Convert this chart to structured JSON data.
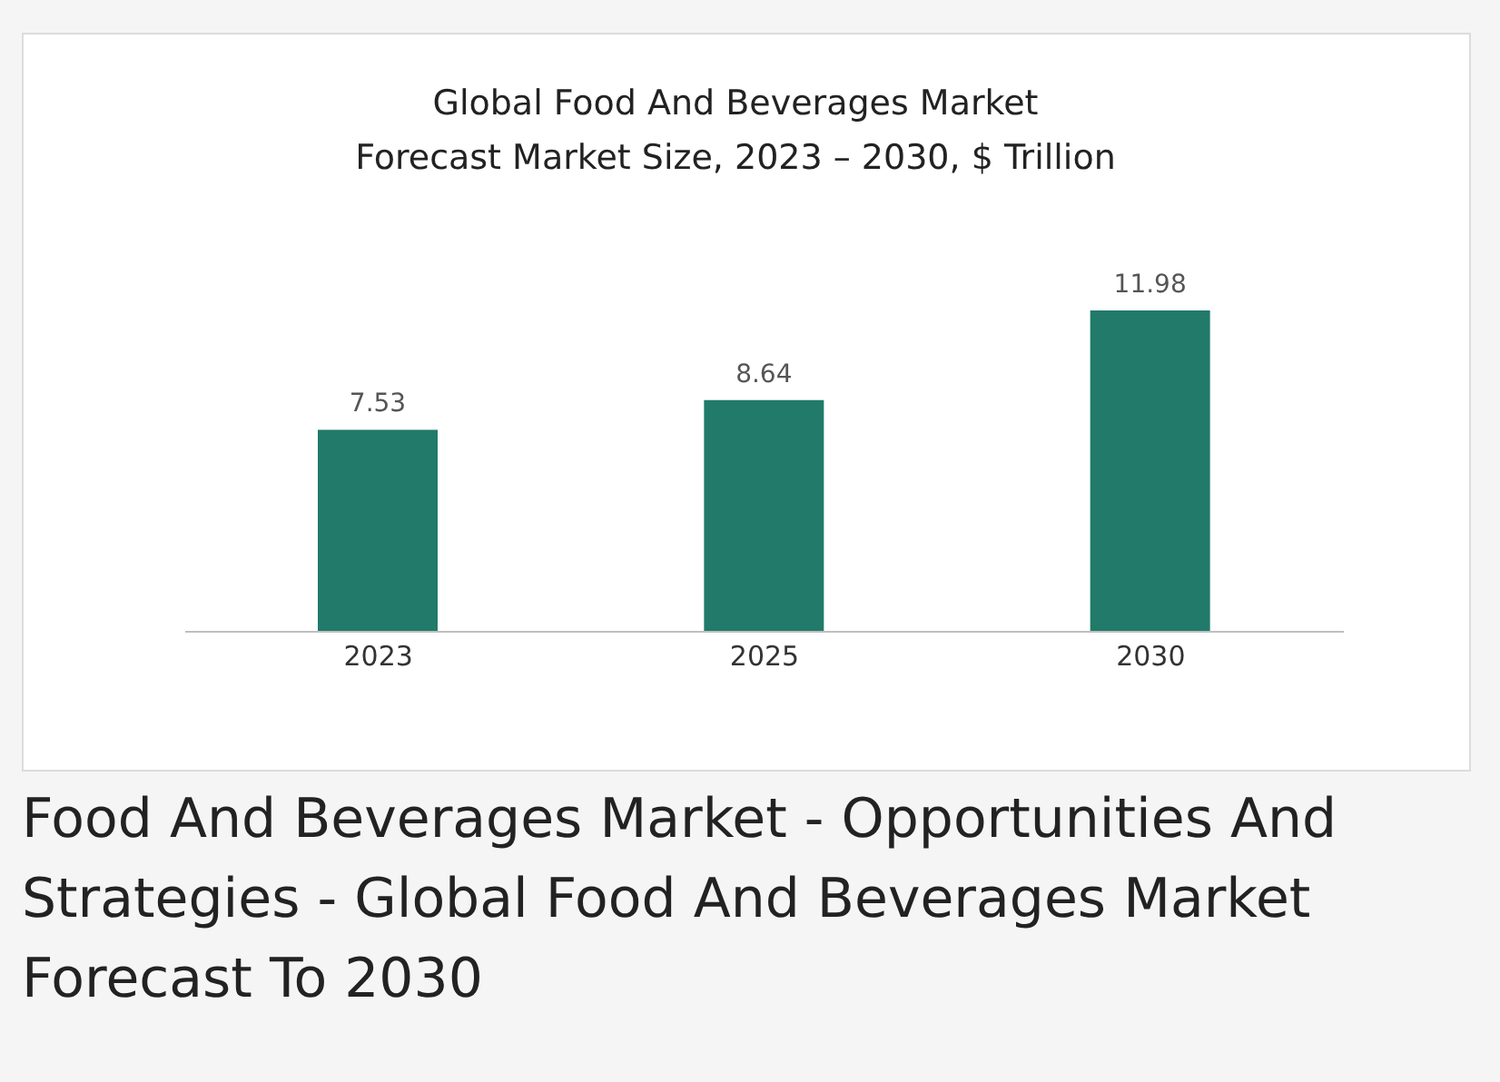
{
  "chart_data": {
    "type": "bar",
    "title": "Global Food And Beverages Market\nForecast Market Size, 2023 – 2030, $ Trillion",
    "categories": [
      "2023",
      "2025",
      "2030"
    ],
    "values": [
      7.53,
      8.64,
      11.98
    ],
    "color": "#217a6a",
    "data_labels": true,
    "annotations": [
      "Food And Beverages Market - Opportunities And Strategies - Global Food And Beverages Market Forecast To 2030"
    ]
  }
}
